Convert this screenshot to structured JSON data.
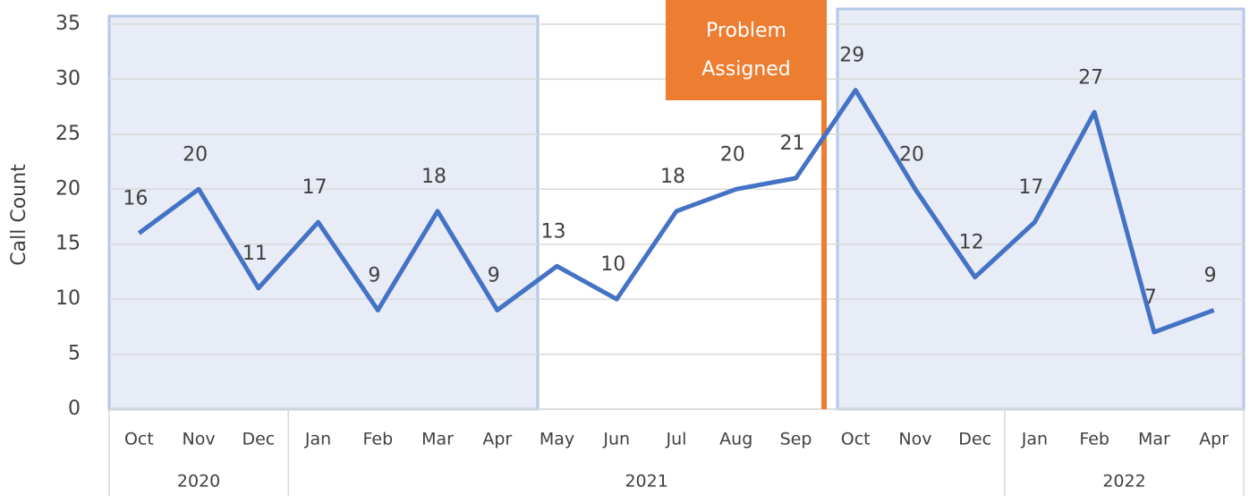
{
  "chart_data": {
    "type": "line",
    "y_label": "Call Count",
    "groups": [
      {
        "label": "2020",
        "categories": [
          "Oct",
          "Nov",
          "Dec"
        ]
      },
      {
        "label": "2021",
        "categories": [
          "Jan",
          "Feb",
          "Mar",
          "Apr",
          "May",
          "Jun",
          "Jul",
          "Aug",
          "Sep",
          "Oct",
          "Nov",
          "Dec"
        ]
      },
      {
        "label": "2022",
        "categories": [
          "Jan",
          "Feb",
          "Mar",
          "Apr"
        ]
      }
    ],
    "values": [
      16,
      20,
      11,
      17,
      9,
      18,
      9,
      13,
      10,
      18,
      20,
      21,
      29,
      20,
      12,
      17,
      27,
      7,
      9
    ],
    "color": "#4472c4",
    "ylim": [
      0,
      35
    ],
    "yticks": [
      0,
      5,
      10,
      15,
      20,
      25,
      30,
      35
    ],
    "grid": true,
    "annotation": {
      "lines": [
        "Problem",
        "Assigned"
      ],
      "color": "#ed7d31"
    }
  }
}
